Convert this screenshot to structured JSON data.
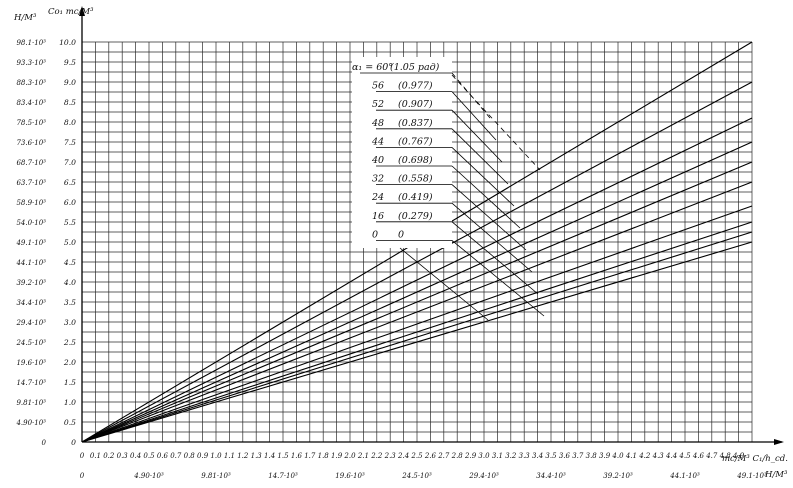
{
  "chart_data": {
    "type": "line",
    "title": "",
    "x_axis": {
      "label": "mc/M³ C₁/h_cd.",
      "label_secondary": "H/M³",
      "range": [
        0,
        5.0
      ],
      "ticks": [
        "0",
        "0.1",
        "0.2",
        "0.3",
        "0.4",
        "0.5",
        "0.6",
        "0.7",
        "0.8",
        "0.9",
        "1.0",
        "1.1",
        "1.2",
        "1.3",
        "1.4",
        "1.5",
        "1.6",
        "1.7",
        "1.8",
        "1.9",
        "2.0",
        "2.1",
        "2.2",
        "2.3",
        "2.4",
        "2.5",
        "2.6",
        "2.7",
        "2.8",
        "2.9",
        "3.0",
        "3.1",
        "3.2",
        "3.3",
        "3.4",
        "3.5",
        "3.6",
        "3.7",
        "3.8",
        "3.9",
        "4.0",
        "4.1",
        "4.2",
        "4.3",
        "4.4",
        "4.5",
        "4.6",
        "4.7",
        "4.8",
        "4.9"
      ],
      "secondary_ticks": [
        {
          "at": 0,
          "label": "0"
        },
        {
          "at": 0.5,
          "label": "4.90·10³"
        },
        {
          "at": 1.0,
          "label": "9.81·10³"
        },
        {
          "at": 1.5,
          "label": "14.7·10³"
        },
        {
          "at": 2.0,
          "label": "19.6·10³"
        },
        {
          "at": 2.5,
          "label": "24.5·10³"
        },
        {
          "at": 3.0,
          "label": "29.4·10³"
        },
        {
          "at": 3.5,
          "label": "34.4·10³"
        },
        {
          "at": 4.0,
          "label": "39.2·10³"
        },
        {
          "at": 4.5,
          "label": "44.1·10³"
        },
        {
          "at": 5.0,
          "label": "49.1·10³"
        }
      ]
    },
    "y_axis": {
      "label_primary": "Co₁ mc/M³",
      "label_secondary": "H/M³",
      "range": [
        0,
        10.0
      ],
      "ticks": [
        {
          "value": 0,
          "primary": "0",
          "secondary": "0"
        },
        {
          "value": 0.5,
          "primary": "0.5",
          "secondary": "4.90·10³"
        },
        {
          "value": 1.0,
          "primary": "1.0",
          "secondary": "9.81·10³"
        },
        {
          "value": 1.5,
          "primary": "1.5",
          "secondary": "14.7·10³"
        },
        {
          "value": 2.0,
          "primary": "2.0",
          "secondary": "19.6·10³"
        },
        {
          "value": 2.5,
          "primary": "2.5",
          "secondary": "24.5·10³"
        },
        {
          "value": 3.0,
          "primary": "3.0",
          "secondary": "29.4·10³"
        },
        {
          "value": 3.5,
          "primary": "3.5",
          "secondary": "34.4·10³"
        },
        {
          "value": 4.0,
          "primary": "4.0",
          "secondary": "39.2·10³"
        },
        {
          "value": 4.5,
          "primary": "4.5",
          "secondary": "44.1·10³"
        },
        {
          "value": 5.0,
          "primary": "5.0",
          "secondary": "49.1·10³"
        },
        {
          "value": 5.5,
          "primary": "5.5",
          "secondary": "54.0·10³"
        },
        {
          "value": 6.0,
          "primary": "6.0",
          "secondary": "58.9·10³"
        },
        {
          "value": 6.5,
          "primary": "6.5",
          "secondary": "63.7·10³"
        },
        {
          "value": 7.0,
          "primary": "7.0",
          "secondary": "68.7·10³"
        },
        {
          "value": 7.5,
          "primary": "7.5",
          "secondary": "73.6·10³"
        },
        {
          "value": 8.0,
          "primary": "8.0",
          "secondary": "78.5·10³"
        },
        {
          "value": 8.5,
          "primary": "8.5",
          "secondary": "83.4·10³"
        },
        {
          "value": 9.0,
          "primary": "9.0",
          "secondary": "88.3·10³"
        },
        {
          "value": 9.5,
          "primary": "9.5",
          "secondary": "93.3·10³"
        },
        {
          "value": 10.0,
          "primary": "10.0",
          "secondary": "98.1·10³"
        }
      ]
    },
    "grid": true,
    "series": [
      {
        "name": "α₁ = 60° (1.05 рад)",
        "x": [
          0,
          5.0
        ],
        "y": [
          0,
          10.0
        ]
      },
      {
        "name": "56 (0.977)",
        "x": [
          0,
          5.0
        ],
        "y": [
          0,
          9.0
        ]
      },
      {
        "name": "52 (0.907)",
        "x": [
          0,
          5.0
        ],
        "y": [
          0,
          8.1
        ]
      },
      {
        "name": "48 (0.837)",
        "x": [
          0,
          5.0
        ],
        "y": [
          0,
          7.5
        ]
      },
      {
        "name": "44 (0.767)",
        "x": [
          0,
          5.0
        ],
        "y": [
          0,
          7.0
        ]
      },
      {
        "name": "40 (0.698)",
        "x": [
          0,
          5.0
        ],
        "y": [
          0,
          6.5
        ]
      },
      {
        "name": "32 (0.558)",
        "x": [
          0,
          5.0
        ],
        "y": [
          0,
          5.9
        ]
      },
      {
        "name": "24 (0.419)",
        "x": [
          0,
          5.0
        ],
        "y": [
          0,
          5.5
        ]
      },
      {
        "name": "16 (0.279)",
        "x": [
          0,
          5.0
        ],
        "y": [
          0,
          5.25
        ]
      },
      {
        "name": "0 0",
        "x": [
          0,
          5.0
        ],
        "y": [
          0,
          5.0
        ]
      }
    ],
    "legend": {
      "placement": "top-center",
      "entries": [
        {
          "angle": "α₁ = 60°",
          "radians": "(1.05 рад)"
        },
        {
          "angle": "56",
          "radians": "(0.977)"
        },
        {
          "angle": "52",
          "radians": "(0.907)"
        },
        {
          "angle": "48",
          "radians": "(0.837)"
        },
        {
          "angle": "44",
          "radians": "(0.767)"
        },
        {
          "angle": "40",
          "radians": "(0.698)"
        },
        {
          "angle": "32",
          "radians": "(0.558)"
        },
        {
          "angle": "24",
          "radians": "(0.419)"
        },
        {
          "angle": "16",
          "radians": "(0.279)"
        },
        {
          "angle": "0",
          "radians": "0"
        }
      ]
    },
    "colors": {
      "ink": "#000000",
      "grid": "#2a2a2a",
      "paper": "#ffffff"
    }
  }
}
